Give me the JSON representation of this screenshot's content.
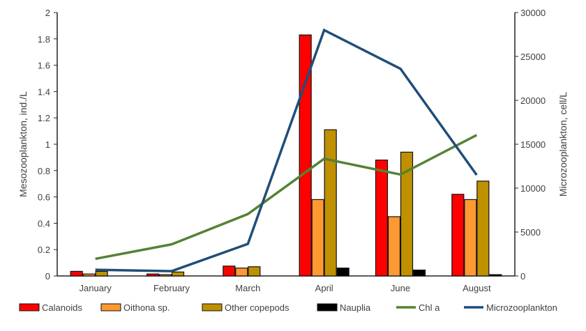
{
  "chart_data": {
    "type": "bar",
    "categories": [
      "January",
      "February",
      "March",
      "April",
      "June",
      "August"
    ],
    "ylabel": "Mesozooplankton, ind./L",
    "y2label": "Microzooplankton, cell/L",
    "ylim": [
      0,
      2
    ],
    "y2lim": [
      0,
      30000
    ],
    "yticks": [
      "0",
      "0.2",
      "0.4",
      "0.6",
      "0.8",
      "1",
      "1.2",
      "1.4",
      "1.6",
      "1.8",
      "2"
    ],
    "y2ticks": [
      "0",
      "5000",
      "10000",
      "15000",
      "20000",
      "25000",
      "30000"
    ],
    "grid": false,
    "legend_position": "bottom",
    "bar_series": [
      {
        "name": "Calanoids",
        "color": "#ff0000",
        "values": [
          0.035,
          0.015,
          0.075,
          1.83,
          0.88,
          0.62
        ]
      },
      {
        "name": "Oithona sp.",
        "color": "#ff9933",
        "values": [
          0.015,
          0.01,
          0.06,
          0.58,
          0.45,
          0.58
        ]
      },
      {
        "name": "Other copepods",
        "color": "#bf9000",
        "values": [
          0.035,
          0.03,
          0.07,
          1.11,
          0.94,
          0.72
        ]
      },
      {
        "name": "Nauplia",
        "color": "#000000",
        "values": [
          0,
          0,
          0,
          0.06,
          0.045,
          0.01
        ]
      }
    ],
    "line_series": [
      {
        "name": "Chl a",
        "color": "#548235",
        "axis": "left",
        "values": [
          0.13,
          0.24,
          0.47,
          0.89,
          0.77,
          1.07
        ]
      },
      {
        "name": "Microzooplankton",
        "color": "#1f4e79",
        "axis": "right",
        "values": [
          700,
          550,
          3650,
          28000,
          23600,
          11500
        ]
      }
    ]
  }
}
